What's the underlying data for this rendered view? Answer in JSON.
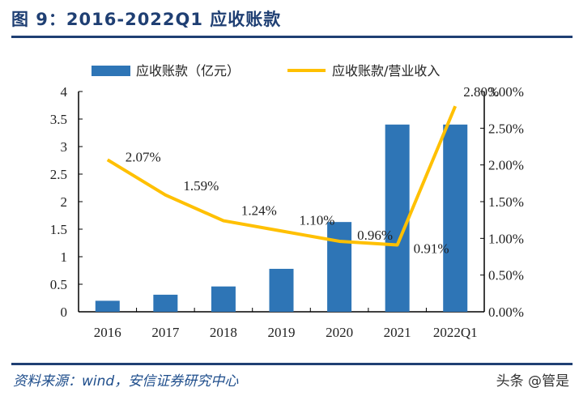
{
  "title": "图 9：2016-2022Q1 应收账款",
  "source": "资料来源：wind，安信证券研究中心",
  "watermark": "头条 @管是",
  "chart_data": {
    "type": "bar+line",
    "categories": [
      "2016",
      "2017",
      "2018",
      "2019",
      "2020",
      "2021",
      "2022Q1"
    ],
    "series": [
      {
        "name": "应收账款（亿元）",
        "type": "bar",
        "axis": "left",
        "color": "#2e75b6",
        "values": [
          0.2,
          0.31,
          0.46,
          0.78,
          1.63,
          3.4,
          3.4
        ]
      },
      {
        "name": "应收账款/营业收入",
        "type": "line",
        "axis": "right",
        "color": "#ffc000",
        "values": [
          2.07,
          1.59,
          1.24,
          1.1,
          0.96,
          0.91,
          2.8
        ],
        "labels": [
          "2.07%",
          "1.59%",
          "1.24%",
          "1.10%",
          "0.96%",
          "0.91%",
          "2.80%"
        ]
      }
    ],
    "left_axis": {
      "range": [
        0,
        4
      ],
      "ticks": [
        "0",
        "0.5",
        "1",
        "1.5",
        "2",
        "2.5",
        "3",
        "3.5",
        "4"
      ]
    },
    "right_axis": {
      "range": [
        0,
        3
      ],
      "ticks": [
        "0.00%",
        "0.50%",
        "1.00%",
        "1.50%",
        "2.00%",
        "2.50%",
        "3.00%"
      ]
    },
    "legend": "top",
    "grid": false
  }
}
